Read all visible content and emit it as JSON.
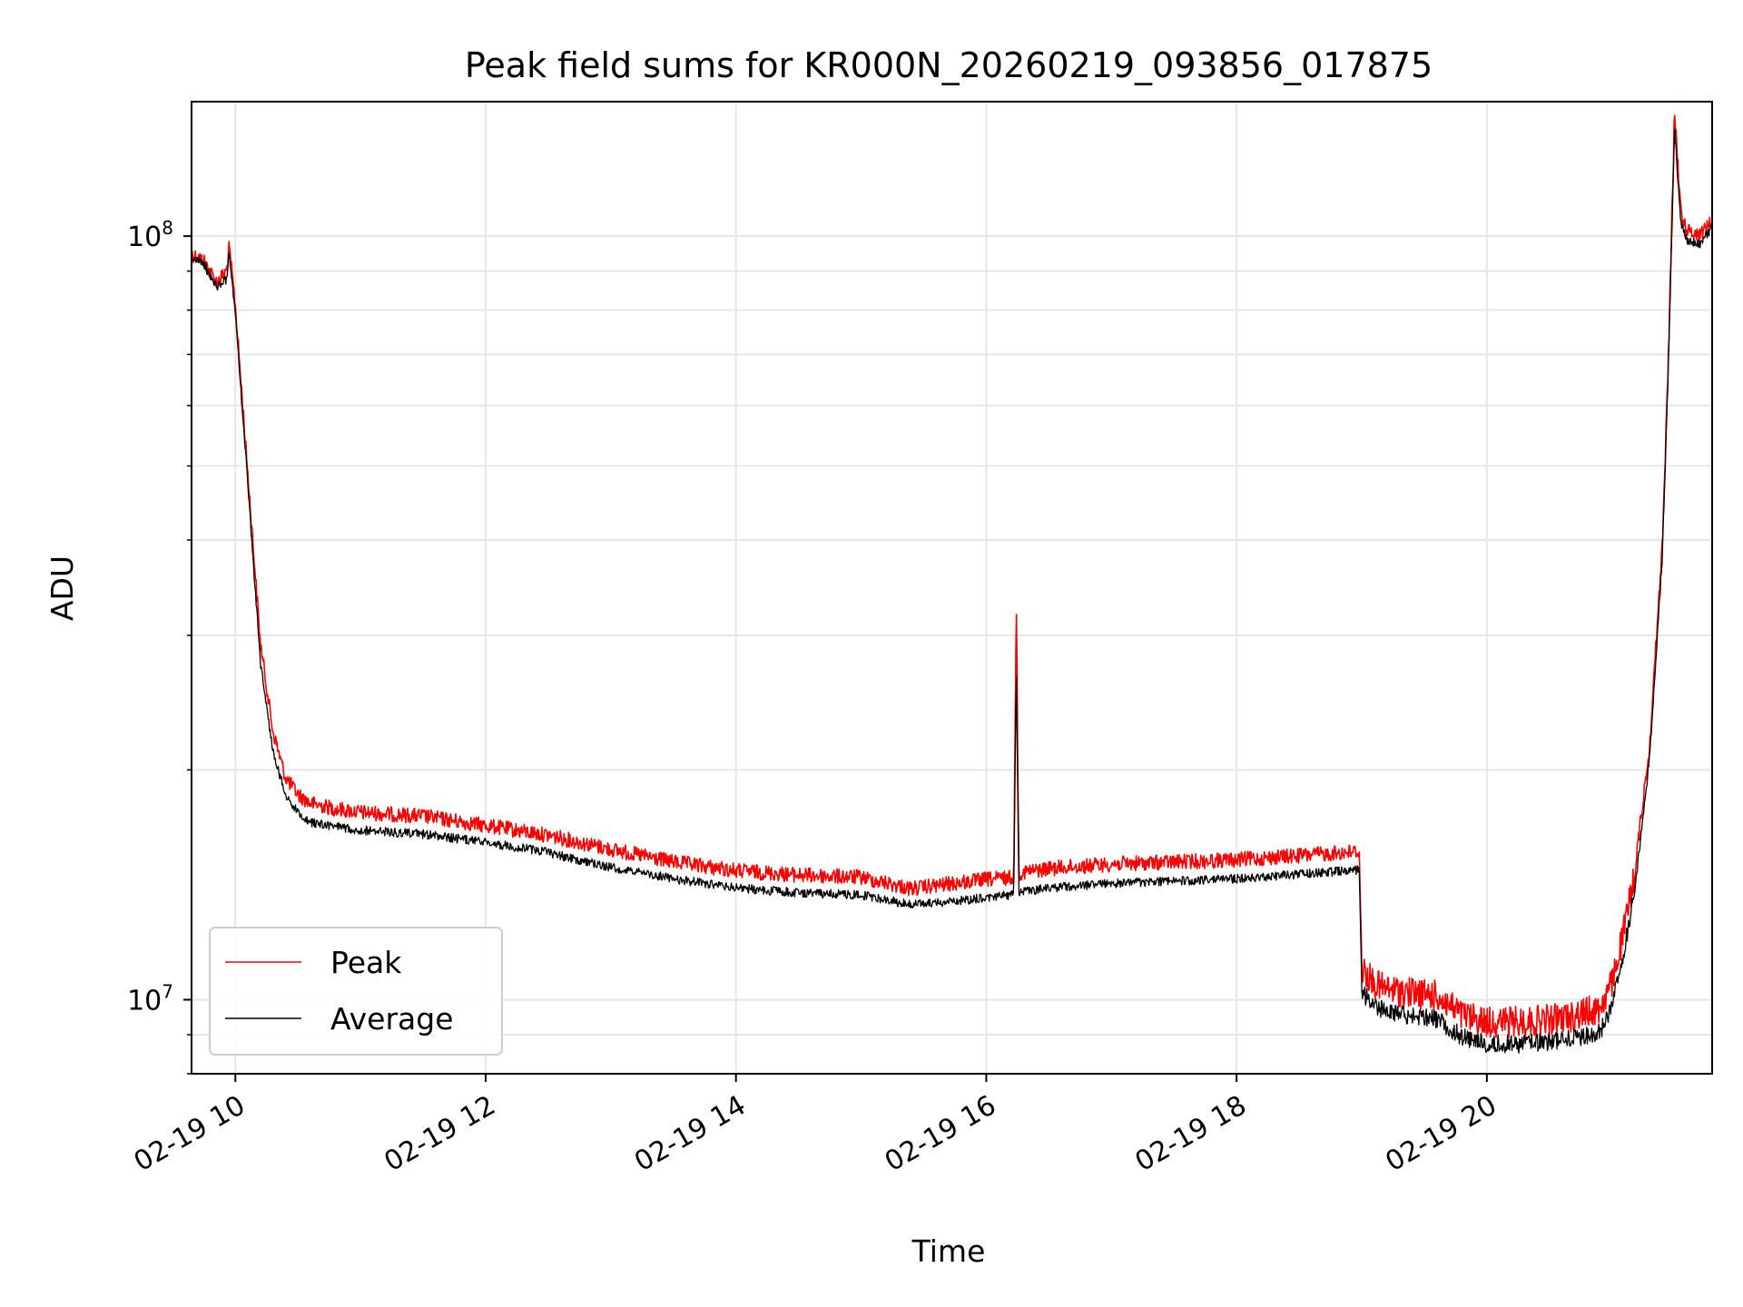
{
  "chart_data": {
    "type": "line",
    "title": "Peak field sums for KR000N_20260219_093856_017875",
    "xlabel": "Time",
    "ylabel": "ADU",
    "yscale": "log",
    "grid": true,
    "legend_position": "lower-left",
    "xlim_hours": [
      9.65,
      21.8
    ],
    "ylim": [
      8000000,
      150000000
    ],
    "x_ticks": [
      {
        "value": 10,
        "label": "02-19 10"
      },
      {
        "value": 12,
        "label": "02-19 12"
      },
      {
        "value": 14,
        "label": "02-19 14"
      },
      {
        "value": 16,
        "label": "02-19 16"
      },
      {
        "value": 18,
        "label": "02-19 18"
      },
      {
        "value": 20,
        "label": "02-19 20"
      }
    ],
    "y_ticks": [
      {
        "value": 10000000,
        "base": "10",
        "exp": "7"
      },
      {
        "value": 100000000,
        "base": "10",
        "exp": "8"
      }
    ],
    "series": [
      {
        "name": "Peak",
        "color": "#ff0000",
        "x": [
          9.65,
          9.75,
          9.85,
          9.93,
          9.95,
          10.0,
          10.1,
          10.2,
          10.3,
          10.4,
          10.5,
          10.6,
          10.8,
          11.0,
          11.5,
          12.0,
          12.5,
          13.0,
          13.5,
          14.0,
          14.5,
          15.0,
          15.4,
          15.7,
          16.0,
          16.22,
          16.24,
          16.26,
          16.5,
          17.0,
          17.5,
          18.0,
          18.5,
          18.98,
          19.0,
          19.1,
          19.2,
          19.4,
          19.6,
          19.8,
          20.0,
          20.3,
          20.6,
          20.9,
          21.0,
          21.1,
          21.2,
          21.3,
          21.4,
          21.45,
          21.5,
          21.55,
          21.6,
          21.7,
          21.8
        ],
        "values": [
          97000000,
          95000000,
          89000000,
          92000000,
          99000000,
          83000000,
          50000000,
          30000000,
          23000000,
          20000000,
          19000000,
          18500000,
          18200000,
          18000000,
          17800000,
          17300000,
          16800000,
          16100000,
          15500000,
          15100000,
          14900000,
          14800000,
          14300000,
          14500000,
          14700000,
          14800000,
          35000000,
          15000000,
          15200000,
          15400000,
          15500000,
          15600000,
          15800000,
          16000000,
          11500000,
          11000000,
          10800000,
          10700000,
          10600000,
          10000000,
          9800000,
          9800000,
          9900000,
          10200000,
          11000000,
          13000000,
          16000000,
          22000000,
          40000000,
          70000000,
          150000000,
          110000000,
          104000000,
          103000000,
          107000000
        ]
      },
      {
        "name": "Average",
        "color": "#000000",
        "x": [
          9.65,
          9.75,
          9.85,
          9.93,
          9.95,
          10.0,
          10.1,
          10.2,
          10.3,
          10.4,
          10.5,
          10.6,
          10.8,
          11.0,
          11.5,
          12.0,
          12.5,
          13.0,
          13.5,
          14.0,
          14.5,
          15.0,
          15.4,
          15.7,
          16.0,
          16.22,
          16.24,
          16.26,
          16.5,
          17.0,
          17.5,
          18.0,
          18.5,
          18.98,
          19.0,
          19.1,
          19.2,
          19.4,
          19.6,
          19.8,
          20.0,
          20.3,
          20.6,
          20.9,
          21.0,
          21.1,
          21.2,
          21.3,
          21.4,
          21.45,
          21.5,
          21.55,
          21.6,
          21.7,
          21.8
        ],
        "values": [
          95000000,
          93000000,
          87000000,
          89000000,
          96000000,
          80000000,
          48000000,
          28000000,
          21500000,
          18800000,
          17800000,
          17300000,
          17100000,
          16900000,
          16700000,
          16300000,
          15800000,
          15100000,
          14600000,
          14200000,
          14000000,
          13900000,
          13500000,
          13600000,
          13800000,
          13900000,
          28000000,
          14000000,
          14200000,
          14400000,
          14500000,
          14600000,
          14800000,
          15000000,
          10500000,
          10100000,
          9900000,
          9800000,
          9700000,
          9200000,
          9000000,
          9000000,
          9100000,
          9300000,
          10000000,
          12000000,
          15000000,
          21000000,
          38000000,
          68000000,
          140000000,
          106000000,
          100000000,
          99000000,
          104000000
        ]
      }
    ]
  }
}
